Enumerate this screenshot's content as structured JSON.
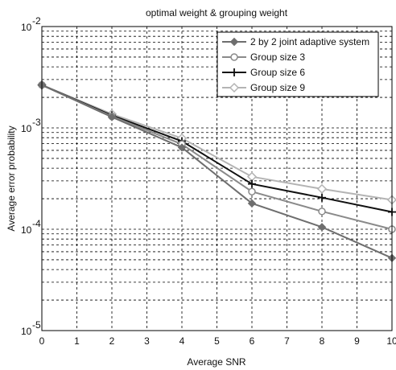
{
  "chart_data": {
    "type": "line",
    "title": "optimal weight & grouping weight",
    "xlabel": "Average SNR",
    "ylabel": "Average error probability",
    "xlim": [
      0,
      10
    ],
    "ylim": [
      1e-05,
      0.01
    ],
    "yscale": "log",
    "grid": true,
    "legend_position": "top-right",
    "x_ticks": [
      "0",
      "1",
      "2",
      "3",
      "4",
      "5",
      "6",
      "7",
      "8",
      "9",
      "10"
    ],
    "y_tick_base": "10",
    "y_tick_exponents": [
      "-5",
      "-4",
      "-3",
      "-2"
    ],
    "series": [
      {
        "name": "2 by 2 joint adaptive system",
        "marker": "diamond-filled",
        "color": "#6e6e6e",
        "x": [
          0,
          2,
          4,
          6,
          8,
          10
        ],
        "y": [
          0.00265,
          0.00128,
          0.00064,
          0.00018,
          0.000105,
          5.2e-05
        ]
      },
      {
        "name": "Group size 3",
        "marker": "circle-open",
        "color": "#8a8a8a",
        "x": [
          0,
          2,
          4,
          6,
          8,
          10
        ],
        "y": [
          0.00265,
          0.0013,
          0.00069,
          0.000235,
          0.00015,
          0.0001
        ]
      },
      {
        "name": "Group size 6",
        "marker": "plus",
        "color": "#111111",
        "x": [
          0,
          2,
          4,
          6,
          8,
          10
        ],
        "y": [
          0.00265,
          0.00133,
          0.00074,
          0.00028,
          0.000205,
          0.000148
        ]
      },
      {
        "name": "Group size 9",
        "marker": "diamond-open",
        "color": "#b4b4b4",
        "x": [
          0,
          2,
          4,
          6,
          8,
          10
        ],
        "y": [
          0.00265,
          0.00137,
          0.00079,
          0.00033,
          0.00025,
          0.000195
        ]
      }
    ]
  }
}
